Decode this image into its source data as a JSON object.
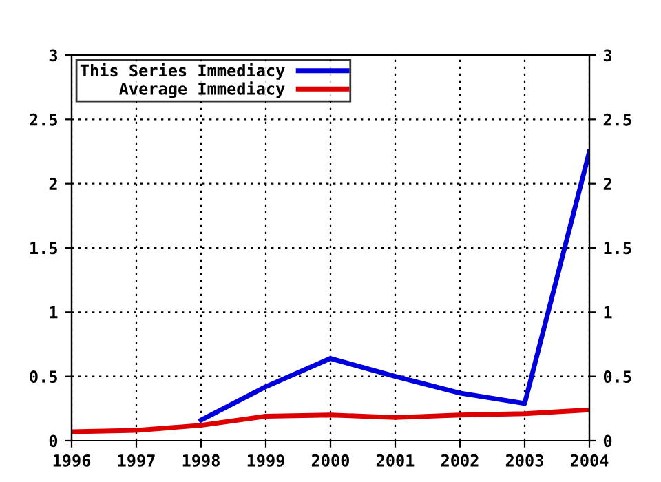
{
  "chart_data": {
    "type": "line",
    "x": [
      1996,
      1997,
      1998,
      1999,
      2000,
      2001,
      2002,
      2003,
      2004
    ],
    "series": [
      {
        "name": "This Series Immediacy",
        "color": "#0000dd",
        "values": [
          null,
          null,
          0.16,
          0.42,
          0.64,
          0.5,
          0.37,
          0.29,
          2.25
        ]
      },
      {
        "name": "Average Immediacy",
        "color": "#dd0000",
        "values": [
          0.07,
          0.08,
          0.12,
          0.19,
          0.2,
          0.18,
          0.2,
          0.21,
          0.24
        ]
      }
    ],
    "xlim": [
      1996,
      2004
    ],
    "xticks": [
      1996,
      1997,
      1998,
      1999,
      2000,
      2001,
      2002,
      2003,
      2004
    ],
    "ylim": [
      0,
      3
    ],
    "yticks": [
      0,
      0.5,
      1,
      1.5,
      2,
      2.5,
      3
    ],
    "y2lim": [
      0,
      3
    ],
    "y2ticks": [
      0,
      0.5,
      1,
      1.5,
      2,
      2.5,
      3
    ],
    "grid": true,
    "legend": "top left",
    "marker": "none",
    "line_style": "solid"
  }
}
